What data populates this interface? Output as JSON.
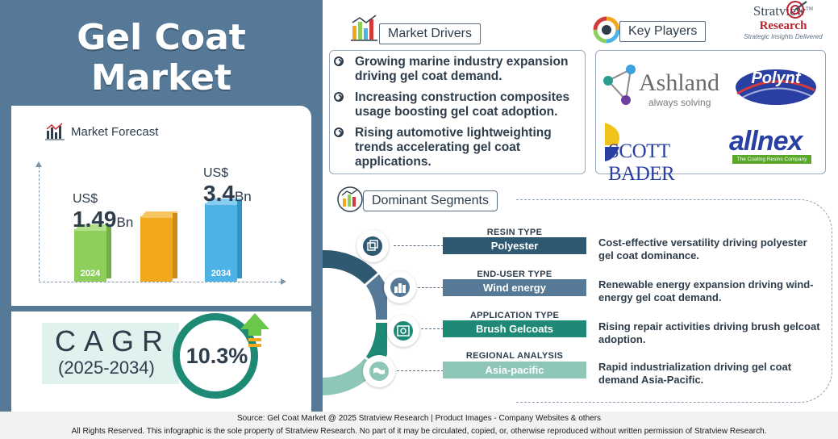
{
  "title": {
    "line1": "Gel Coat",
    "line2": "Market"
  },
  "forecast": {
    "heading": "Market Forecast",
    "bars": [
      {
        "currency": "US$",
        "value": "1.49",
        "unit": "Bn",
        "year": "2024",
        "color": "#8dcf5a"
      },
      {
        "currency": "",
        "value": "",
        "unit": "",
        "year": "",
        "color": "#f2a81d"
      },
      {
        "currency": "US$",
        "value": "3.4",
        "unit": "Bn",
        "year": "2034",
        "color": "#4db2e6"
      }
    ]
  },
  "cagr": {
    "label": "CAGR",
    "period": "(2025-2034)",
    "value": "10.3%"
  },
  "drivers": {
    "heading": "Market Drivers",
    "items": [
      "Growing marine industry expansion driving gel coat demand.",
      "Increasing construction composites usage boosting gel coat adoption.",
      "Rising automotive lightweighting trends accelerating gel coat applications."
    ]
  },
  "players": {
    "heading": "Key Players",
    "logos": [
      {
        "name": "Ashland",
        "tagline": "always solving"
      },
      {
        "name": "Polynt",
        "tagline": ""
      },
      {
        "name": "SCOTT BADER",
        "tagline": ""
      },
      {
        "name": "allnex",
        "tagline": "The Coating Resins Company"
      }
    ]
  },
  "brand": {
    "line1": "Stratview",
    "line2": "Research",
    "tagline": "Strategic Insights Delivered",
    "tm": "TM"
  },
  "segments": {
    "heading": "Dominant Segments",
    "items": [
      {
        "type": "RESIN TYPE",
        "value": "Polyester",
        "desc": "Cost-effective versatility driving polyester gel coat dominance.",
        "color": "#2f5871"
      },
      {
        "type": "END-USER TYPE",
        "value": "Wind energy",
        "desc": "Renewable energy expansion driving wind-energy gel coat demand.",
        "color": "#557996"
      },
      {
        "type": "APPLICATION TYPE",
        "value": "Brush Gelcoats",
        "desc": "Rising repair activities driving brush gelcoat adoption.",
        "color": "#1e8a76"
      },
      {
        "type": "REGIONAL ANALYSIS",
        "value": "Asia-pacific",
        "desc": "Rapid industrialization driving gel coat demand Asia-Pacific.",
        "color": "#8ec7b8"
      }
    ]
  },
  "footer": {
    "line1": "Source:  Gel Coat Market @ 2025 Stratview Research | Product Images  - Company Websites & others",
    "line2": "All Rights Reserved. This infographic is the sole property of Stratview Research. No part of it may be circulated, copied, or, otherwise reproduced without written permission of Stratview Research."
  }
}
